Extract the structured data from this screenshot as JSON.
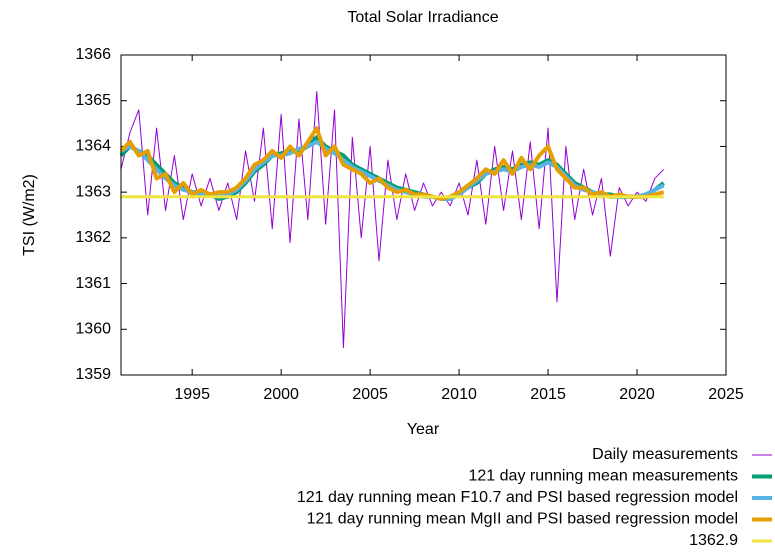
{
  "chart_data": {
    "type": "line",
    "title": "Total Solar Irradiance",
    "x_label": "Year",
    "y_label": "TSI (W/m2)",
    "xlim": [
      1991,
      2025
    ],
    "xticks": [
      1995,
      2000,
      2005,
      2010,
      2015,
      2020,
      2025
    ],
    "ylim": [
      1359,
      1366
    ],
    "yticks": [
      1359,
      1360,
      1361,
      1362,
      1363,
      1364,
      1365,
      1366
    ],
    "x": [
      1991.0,
      1991.5,
      1992.0,
      1992.5,
      1993.0,
      1993.5,
      1994.0,
      1994.5,
      1995.0,
      1995.5,
      1996.0,
      1996.5,
      1997.0,
      1997.5,
      1998.0,
      1998.5,
      1999.0,
      1999.5,
      2000.0,
      2000.5,
      2001.0,
      2001.5,
      2002.0,
      2002.5,
      2003.0,
      2003.5,
      2004.0,
      2004.5,
      2005.0,
      2005.5,
      2006.0,
      2006.5,
      2007.0,
      2007.5,
      2008.0,
      2008.5,
      2009.0,
      2009.5,
      2010.0,
      2010.5,
      2011.0,
      2011.5,
      2012.0,
      2012.5,
      2013.0,
      2013.5,
      2014.0,
      2014.5,
      2015.0,
      2015.5,
      2016.0,
      2016.5,
      2017.0,
      2017.5,
      2018.0,
      2018.5,
      2019.0,
      2019.5,
      2020.0,
      2020.5,
      2021.0,
      2021.5
    ],
    "series": [
      {
        "name": "Daily measurements",
        "color": "#9400d3",
        "width": 1,
        "values": [
          1363.5,
          1364.3,
          1364.8,
          1362.5,
          1364.4,
          1362.6,
          1363.8,
          1362.4,
          1363.4,
          1362.7,
          1363.3,
          1362.6,
          1363.2,
          1362.4,
          1363.9,
          1362.8,
          1364.4,
          1362.2,
          1364.7,
          1361.9,
          1364.6,
          1362.4,
          1365.2,
          1362.3,
          1364.8,
          1359.6,
          1364.2,
          1362.0,
          1364.0,
          1361.5,
          1363.7,
          1362.4,
          1363.4,
          1362.6,
          1363.2,
          1362.7,
          1363.0,
          1362.7,
          1363.2,
          1362.5,
          1363.7,
          1362.3,
          1364.0,
          1362.6,
          1363.9,
          1362.4,
          1364.1,
          1362.2,
          1364.4,
          1360.6,
          1364.0,
          1362.4,
          1363.5,
          1362.5,
          1363.3,
          1361.6,
          1363.1,
          1362.7,
          1363.0,
          1362.8,
          1363.3,
          1363.5
        ]
      },
      {
        "name": "121 day running mean measurements",
        "color": "#009e73",
        "width": 4,
        "values": [
          1363.8,
          1364.0,
          1363.9,
          1363.8,
          1363.6,
          1363.4,
          1363.2,
          1363.1,
          1363.0,
          1363.0,
          1362.95,
          1362.85,
          1362.9,
          1363.0,
          1363.2,
          1363.45,
          1363.6,
          1363.8,
          1363.85,
          1363.9,
          1363.9,
          1364.0,
          1364.2,
          1364.0,
          1363.9,
          1363.8,
          1363.6,
          1363.5,
          1363.4,
          1363.3,
          1363.2,
          1363.1,
          1363.05,
          1363.0,
          1362.95,
          1362.9,
          1362.85,
          1362.85,
          1362.95,
          1363.1,
          1363.2,
          1363.4,
          1363.5,
          1363.55,
          1363.5,
          1363.6,
          1363.65,
          1363.6,
          1363.7,
          1363.6,
          1363.4,
          1363.2,
          1363.1,
          1363.0,
          1362.95,
          1362.95,
          1362.9,
          1362.9,
          1362.9,
          1362.95,
          1363.05,
          1363.2
        ]
      },
      {
        "name": "121 day running mean F10.7 and PSI based regression model",
        "color": "#56b4e9",
        "width": 4,
        "values": [
          1363.9,
          1364.0,
          1363.9,
          1363.7,
          1363.5,
          1363.3,
          1363.15,
          1363.05,
          1363.0,
          1362.95,
          1362.95,
          1362.9,
          1362.95,
          1363.05,
          1363.25,
          1363.5,
          1363.65,
          1363.8,
          1363.8,
          1363.85,
          1363.95,
          1364.0,
          1364.1,
          1363.95,
          1363.85,
          1363.7,
          1363.55,
          1363.45,
          1363.35,
          1363.25,
          1363.15,
          1363.05,
          1363.0,
          1362.95,
          1362.9,
          1362.9,
          1362.85,
          1362.85,
          1362.95,
          1363.1,
          1363.25,
          1363.4,
          1363.45,
          1363.5,
          1363.45,
          1363.55,
          1363.6,
          1363.55,
          1363.65,
          1363.55,
          1363.35,
          1363.15,
          1363.05,
          1363.0,
          1362.95,
          1362.9,
          1362.9,
          1362.9,
          1362.9,
          1362.95,
          1363.05,
          1363.15
        ]
      },
      {
        "name": "121 day running mean MgII and PSI based regression model",
        "color": "#e69f00",
        "width": 4,
        "values": [
          1363.9,
          1364.1,
          1363.8,
          1363.9,
          1363.3,
          1363.4,
          1363.0,
          1363.2,
          1362.95,
          1363.05,
          1362.95,
          1363.0,
          1363.0,
          1363.1,
          1363.3,
          1363.6,
          1363.7,
          1363.9,
          1363.75,
          1364.0,
          1363.8,
          1364.1,
          1364.4,
          1363.8,
          1364.0,
          1363.6,
          1363.5,
          1363.4,
          1363.2,
          1363.3,
          1363.1,
          1363.0,
          1363.05,
          1362.95,
          1362.95,
          1362.9,
          1362.85,
          1362.9,
          1363.0,
          1363.15,
          1363.3,
          1363.5,
          1363.4,
          1363.7,
          1363.4,
          1363.75,
          1363.5,
          1363.8,
          1364.0,
          1363.5,
          1363.3,
          1363.1,
          1363.1,
          1362.95,
          1363.0,
          1362.9,
          1362.95,
          1362.9,
          1362.9,
          1362.9,
          1362.95,
          1363.0
        ]
      }
    ],
    "reference_line": {
      "name": "1362.9",
      "value": 1362.9,
      "color": "#f0e442",
      "width": 3
    }
  }
}
